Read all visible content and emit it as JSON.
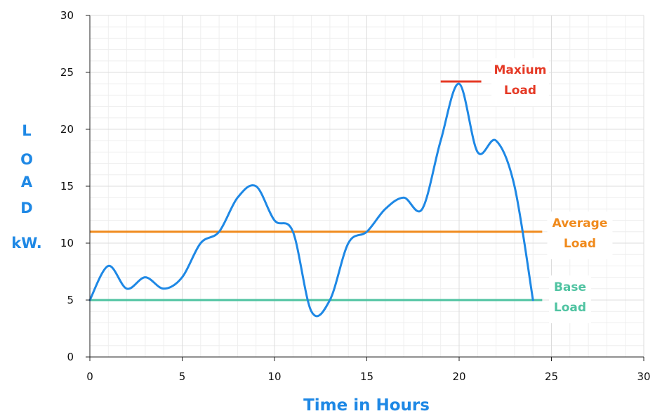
{
  "chart_data": {
    "type": "line",
    "xlabel": "Time in Hours",
    "ylabel": "LOAD kW.",
    "ylabel_letters": [
      "L",
      "O",
      "A",
      "D"
    ],
    "ylabel_unit": "kW.",
    "xlim": [
      0,
      30
    ],
    "ylim": [
      0,
      30
    ],
    "x_ticks": [
      0,
      5,
      10,
      15,
      20,
      25,
      30
    ],
    "y_ticks": [
      0,
      5,
      10,
      15,
      20,
      25,
      30
    ],
    "grid": true,
    "series": [
      {
        "color": "#1e88e5",
        "x": [
          0,
          1,
          2,
          3,
          4,
          5,
          6,
          7,
          8,
          9,
          10,
          11,
          12,
          13,
          14,
          15,
          16,
          17,
          18,
          19,
          20,
          21,
          22,
          23,
          24
        ],
        "values": [
          5,
          8,
          6,
          7,
          6,
          7,
          10,
          11,
          14,
          15,
          12,
          11,
          4,
          5,
          10,
          11,
          13,
          14,
          13,
          19,
          24,
          18,
          19,
          15,
          5
        ]
      }
    ],
    "reference_lines": [
      {
        "label_lines": [
          "Average",
          "Load"
        ],
        "y": 11,
        "x_range": [
          0,
          24.5
        ],
        "color": "#f08a1c"
      },
      {
        "label_lines": [
          "Base",
          "Load"
        ],
        "y": 5,
        "x_range": [
          0,
          24.5
        ],
        "color": "#4fc3a1"
      },
      {
        "label_lines": [
          "Maxium",
          "Load"
        ],
        "y": 24.2,
        "x_range": [
          19,
          21.2
        ],
        "color": "#e53925"
      }
    ]
  }
}
